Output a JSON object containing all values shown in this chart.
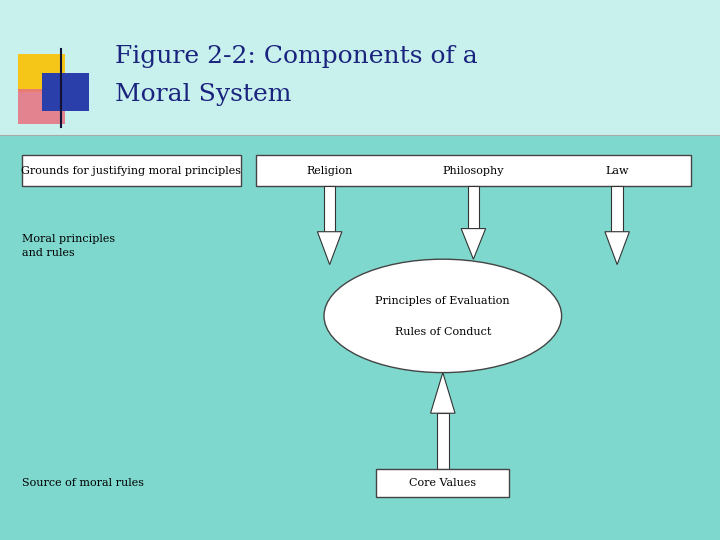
{
  "title_line1": "Figure 2-2: Components of a",
  "title_line2": "Moral System",
  "bg_color": "#7fd8ce",
  "title_color": "#1a237e",
  "box_face": "white",
  "box_edge": "#444444",
  "label_grounds": "Grounds for justifying moral principles",
  "label_moral": "Moral principles\nand rules",
  "label_source": "Source of moral rules",
  "top_box_items": [
    "Religion",
    "Philosophy",
    "Law"
  ],
  "oval_text1": "Principles of Evaluation",
  "oval_text2": "Rules of Conduct",
  "core_label": "Core Values",
  "font_size_title": 18,
  "font_size_labels": 8,
  "font_size_box": 8,
  "font_size_top_items": 8
}
